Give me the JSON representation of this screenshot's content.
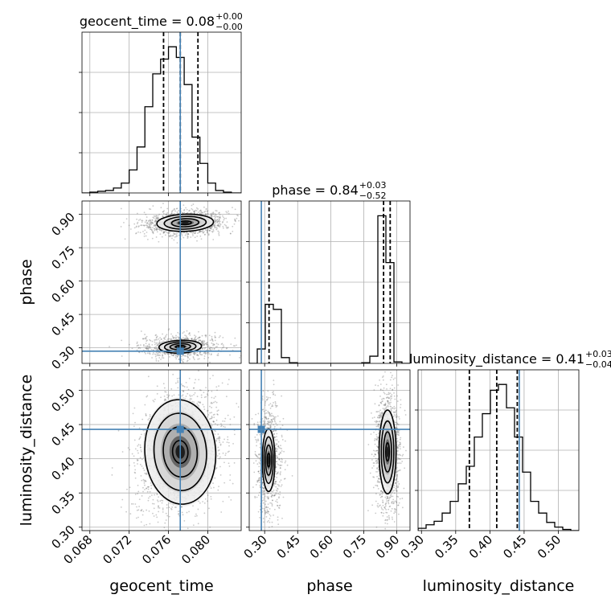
{
  "chart_data": {
    "type": "corner",
    "parameters": [
      "geocent_time",
      "phase",
      "luminosity_distance"
    ],
    "truths": {
      "geocent_time": 0.0772,
      "phase": 0.285,
      "luminosity_distance": 0.443
    },
    "colors": {
      "truth": "#4682b4",
      "hist": "#000000",
      "grid": "#b0b0b0",
      "points": "#666666"
    },
    "grid": true,
    "titles": [
      {
        "param": "geocent_time",
        "name": "geocent_time = 0.08",
        "sup": "+0.00",
        "sub": "−0.00"
      },
      {
        "param": "phase",
        "name": "phase = 0.84",
        "sup": "+0.03",
        "sub": "−0.52"
      },
      {
        "param": "luminosity_distance",
        "name": "luminosity_distance = 0.41",
        "sup": "+0.03",
        "sub": "−0.04"
      }
    ],
    "axis_labels": {
      "geocent_time": "geocent_time",
      "phase": "phase",
      "luminosity_distance": "luminosity_distance"
    },
    "ranges": {
      "geocent_time": [
        0.0672,
        0.0834
      ],
      "phase": [
        0.23,
        0.96
      ],
      "luminosity_distance": [
        0.295,
        0.53
      ]
    },
    "ticks": {
      "geocent_time": {
        "values": [
          0.068,
          0.072,
          0.076,
          0.08
        ],
        "labels": [
          "0.068",
          "0.072",
          "0.076",
          "0.080"
        ]
      },
      "phase": {
        "values": [
          0.3,
          0.45,
          0.6,
          0.75,
          0.9
        ],
        "labels": [
          "0.30",
          "0.45",
          "0.60",
          "0.75",
          "0.90"
        ]
      },
      "luminosity_distance": {
        "values": [
          0.3,
          0.35,
          0.4,
          0.45,
          0.5
        ],
        "labels": [
          "0.30",
          "0.35",
          "0.40",
          "0.45",
          "0.50"
        ]
      }
    },
    "quantiles": {
      "geocent_time": [
        0.0755,
        0.0772,
        0.079
      ],
      "phase": [
        0.32,
        0.84,
        0.87
      ],
      "luminosity_distance": [
        0.37,
        0.41,
        0.44
      ]
    },
    "hist_1d": {
      "geocent_time": {
        "edges": [
          0.0672,
          0.068,
          0.0688,
          0.0696,
          0.0704,
          0.0712,
          0.072,
          0.0728,
          0.0736,
          0.0744,
          0.0752,
          0.076,
          0.0768,
          0.0776,
          0.0784,
          0.0792,
          0.08,
          0.0808,
          0.0816,
          0.0824,
          0.0834
        ],
        "counts": [
          0,
          1,
          2,
          3,
          6,
          12,
          28,
          56,
          105,
          145,
          163,
          178,
          165,
          132,
          68,
          36,
          12,
          3,
          1,
          0
        ]
      },
      "phase": {
        "edges": [
          0.23,
          0.2665,
          0.303,
          0.3395,
          0.376,
          0.4125,
          0.449,
          0.4855,
          0.522,
          0.5585,
          0.595,
          0.6315,
          0.668,
          0.7045,
          0.741,
          0.7775,
          0.814,
          0.8505,
          0.887,
          0.9235,
          0.96
        ],
        "counts": [
          0,
          20,
          82,
          75,
          8,
          1,
          0,
          0,
          0,
          0,
          0,
          0,
          0,
          0,
          1,
          10,
          205,
          140,
          2,
          0
        ]
      },
      "luminosity_distance": {
        "edges": [
          0.295,
          0.30675,
          0.3185,
          0.33025,
          0.342,
          0.35375,
          0.3655,
          0.37725,
          0.389,
          0.40075,
          0.4125,
          0.42425,
          0.436,
          0.44775,
          0.4595,
          0.47125,
          0.483,
          0.49475,
          0.5065,
          0.51825,
          0.53
        ],
        "counts": [
          2,
          5,
          8,
          15,
          25,
          40,
          55,
          80,
          100,
          120,
          125,
          105,
          80,
          50,
          25,
          15,
          7,
          3,
          1,
          0
        ]
      }
    },
    "hist_2d": [
      {
        "x": "geocent_time",
        "y": "phase",
        "blobs": [
          {
            "cx": 0.0772,
            "cy": 0.305,
            "sx": 0.00165,
            "sy": 0.022,
            "w": 0.36,
            "rho": 0.1
          },
          {
            "cx": 0.0777,
            "cy": 0.862,
            "sx": 0.00165,
            "sy": 0.022,
            "w": 0.64,
            "rho": 0.1
          }
        ]
      },
      {
        "x": "geocent_time",
        "y": "luminosity_distance",
        "blobs": [
          {
            "cx": 0.0772,
            "cy": 0.41,
            "sx": 0.00165,
            "sy": 0.035,
            "w": 1.0,
            "rho": 0.2
          }
        ]
      },
      {
        "x": "phase",
        "y": "luminosity_distance",
        "blobs": [
          {
            "cx": 0.318,
            "cy": 0.398,
            "sx": 0.022,
            "sy": 0.035,
            "w": 0.36,
            "rho": 0.0
          },
          {
            "cx": 0.858,
            "cy": 0.41,
            "sx": 0.022,
            "sy": 0.035,
            "w": 0.64,
            "rho": 0.0
          }
        ]
      }
    ]
  }
}
